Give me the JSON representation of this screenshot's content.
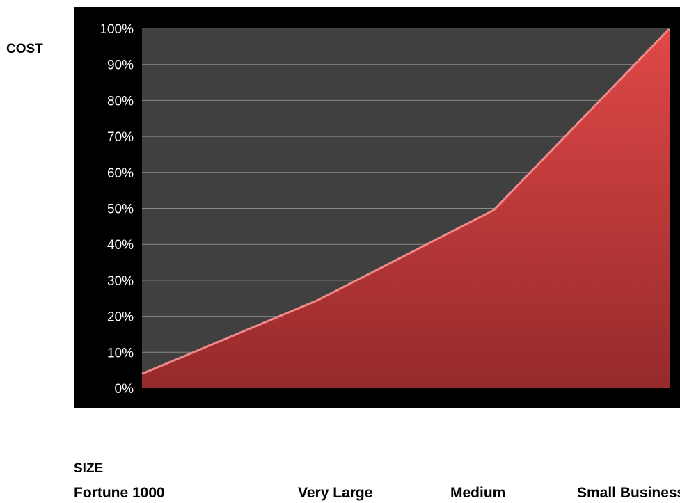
{
  "chart_data": {
    "type": "area",
    "ylabel": "COST",
    "xlabel": "SIZE",
    "categories": [
      "Fortune 1000",
      "Very Large",
      "Medium",
      "Small Business"
    ],
    "series": [
      {
        "values": [
          4,
          24.5,
          49.5,
          100
        ]
      }
    ],
    "ylim": [
      0,
      100
    ],
    "yticks": [
      "0%",
      "10%",
      "20%",
      "30%",
      "40%",
      "50%",
      "60%",
      "70%",
      "80%",
      "90%",
      "100%"
    ],
    "grid": true,
    "legend": "none",
    "colors": {
      "frame": "#000000",
      "plot_background": "#404040",
      "gridline": "#8a8a8a",
      "tick_label": "#ffffff",
      "area_top": "#e04848",
      "area_bottom": "#962a2a"
    }
  }
}
